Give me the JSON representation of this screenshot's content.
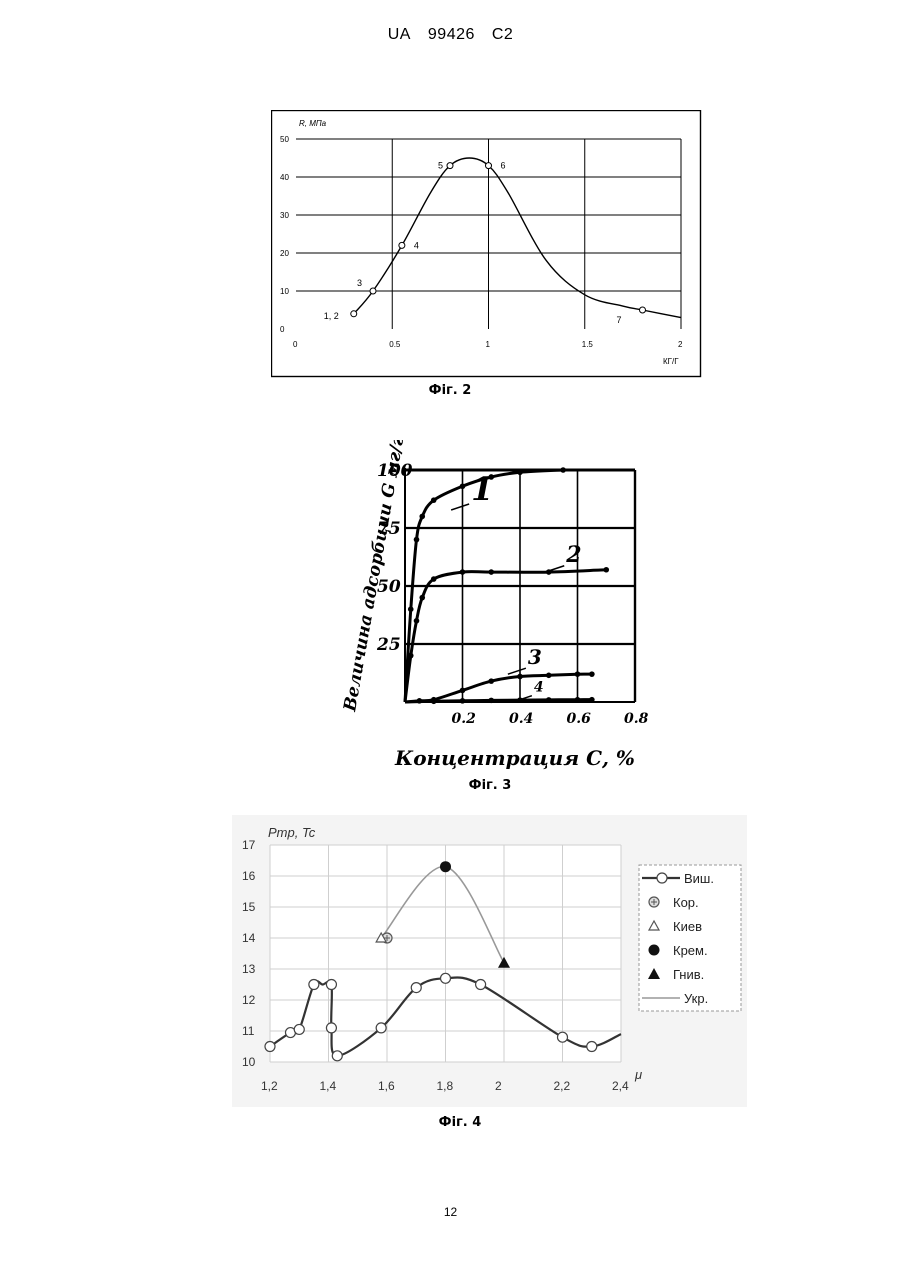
{
  "header": {
    "country": "UA",
    "number": "99426",
    "kind": "C2"
  },
  "page_number": "12",
  "chart_data": [
    {
      "id": "fig2",
      "caption": "Фіг. 2",
      "type": "line",
      "ylabel": "R, МПа",
      "xlabel": "КГ/Г",
      "xlim": [
        0,
        2
      ],
      "ylim": [
        0,
        50
      ],
      "x_ticks": [
        "0",
        "0.5",
        "1",
        "1.5",
        "2"
      ],
      "y_ticks": [
        "0",
        "10",
        "20",
        "30",
        "40",
        "50"
      ],
      "grid": true,
      "curve": {
        "x": [
          0.3,
          0.4,
          0.55,
          0.7,
          0.8,
          0.9,
          1.0,
          1.1,
          1.3,
          1.5,
          1.7,
          1.8,
          2.0
        ],
        "y": [
          4,
          10,
          22,
          36,
          43,
          45,
          43,
          36,
          18,
          9,
          6,
          5,
          3
        ]
      },
      "points": [
        {
          "label": "1, 2",
          "x": 0.3,
          "y": 4
        },
        {
          "label": "3",
          "x": 0.4,
          "y": 10
        },
        {
          "label": "4",
          "x": 0.55,
          "y": 22
        },
        {
          "label": "5",
          "x": 0.8,
          "y": 43
        },
        {
          "label": "6",
          "x": 1.0,
          "y": 43
        },
        {
          "label": "7",
          "x": 1.8,
          "y": 5
        }
      ]
    },
    {
      "id": "fig3",
      "caption": "Фіг. 3",
      "type": "line",
      "ylabel": "Величина адсорбции G мг/г",
      "xlabel": "Концентрация С, %",
      "xlim": [
        0,
        0.8
      ],
      "ylim": [
        0,
        100
      ],
      "x_ticks": [
        "0.2",
        "0.4",
        "0.6",
        "0.8"
      ],
      "y_ticks": [
        "25",
        "50",
        "75",
        "100"
      ],
      "grid": true,
      "series": [
        {
          "name": "1",
          "x": [
            0.0,
            0.02,
            0.04,
            0.06,
            0.1,
            0.2,
            0.3,
            0.4,
            0.55
          ],
          "y": [
            0,
            40,
            70,
            80,
            87,
            93,
            97,
            99,
            100
          ]
        },
        {
          "name": "2",
          "x": [
            0.0,
            0.02,
            0.04,
            0.06,
            0.1,
            0.2,
            0.3,
            0.5,
            0.7
          ],
          "y": [
            0,
            20,
            35,
            45,
            53,
            56,
            56,
            56,
            57
          ]
        },
        {
          "name": "3",
          "x": [
            0.0,
            0.05,
            0.1,
            0.2,
            0.3,
            0.4,
            0.5,
            0.6,
            0.65
          ],
          "y": [
            0,
            0.5,
            1,
            5,
            9,
            11,
            11.5,
            12,
            12
          ]
        },
        {
          "name": "4",
          "x": [
            0.0,
            0.1,
            0.2,
            0.3,
            0.4,
            0.5,
            0.6,
            0.65
          ],
          "y": [
            0,
            0.3,
            0.5,
            0.7,
            0.8,
            0.9,
            1,
            1
          ]
        }
      ]
    },
    {
      "id": "fig4",
      "caption": "Фіг. 4",
      "type": "line",
      "ylabel": "Pmp, Tc",
      "xlabel": "μ",
      "xlim": [
        1.2,
        2.4
      ],
      "ylim": [
        10,
        17
      ],
      "x_ticks": [
        "1,2",
        "1,4",
        "1,6",
        "1,8",
        "2",
        "2,2",
        "2,4"
      ],
      "y_ticks": [
        "10",
        "11",
        "12",
        "13",
        "14",
        "15",
        "16",
        "17"
      ],
      "grid": true,
      "legend_position": "right",
      "legend": [
        "Виш.",
        "Кор.",
        "Киев",
        "Крем.",
        "Гнив.",
        "Укр."
      ],
      "series": [
        {
          "name": "Виш.",
          "marker": "open-circle",
          "x": [
            1.2,
            1.27,
            1.3,
            1.35,
            1.38,
            1.41,
            1.41,
            1.43,
            1.58,
            1.7,
            1.8,
            1.92,
            2.2,
            2.3,
            2.4
          ],
          "y": [
            10.5,
            10.95,
            11.05,
            12.5,
            12.5,
            12.5,
            11.1,
            10.2,
            11.1,
            12.4,
            12.7,
            12.5,
            10.8,
            10.5,
            10.9
          ],
          "markers_at": [
            0,
            1,
            2,
            3,
            5,
            6,
            7,
            8,
            9,
            10,
            11,
            12,
            13
          ]
        },
        {
          "name": "Кор.",
          "marker": "hatched-circle",
          "x": [
            1.6
          ],
          "y": [
            14
          ]
        },
        {
          "name": "Киев",
          "marker": "open-triangle",
          "x": [
            1.58
          ],
          "y": [
            14
          ]
        },
        {
          "name": "Крем.",
          "marker": "filled-circle",
          "x": [
            1.8
          ],
          "y": [
            16.3
          ]
        },
        {
          "name": "Гнив.",
          "marker": "filled-triangle",
          "x": [
            2.0
          ],
          "y": [
            13.2
          ]
        },
        {
          "name": "Укр.",
          "marker": "none",
          "x": [
            1.58,
            1.8,
            2.0
          ],
          "y": [
            14,
            16.3,
            13.2
          ]
        }
      ]
    }
  ]
}
